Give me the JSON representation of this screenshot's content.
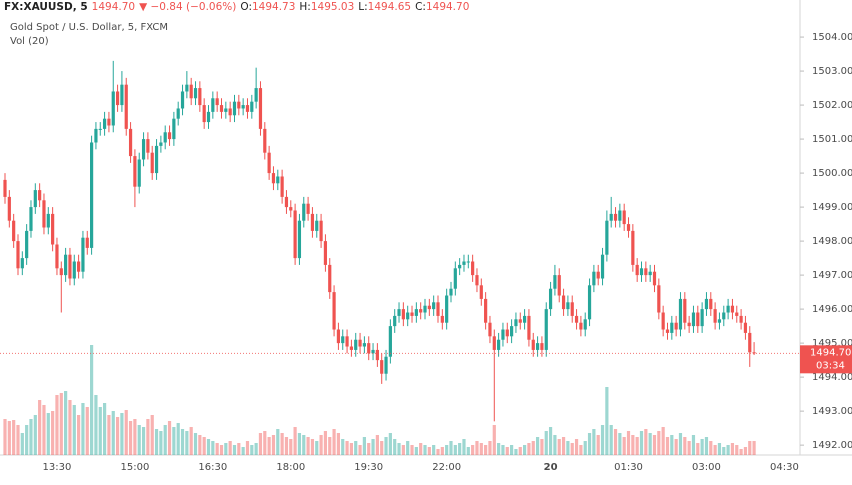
{
  "chart_data": {
    "type": "candlestick",
    "header": {
      "symbol": "FX:XAUUSD, 5",
      "price": "1494.70",
      "change": "▼ −0.84 (−0.06%)",
      "ohlc": [
        {
          "label": "O:",
          "value": "1494.73"
        },
        {
          "label": "H:",
          "value": "1495.03"
        },
        {
          "label": "L:",
          "value": "1494.65"
        },
        {
          "label": "C:",
          "value": "1494.70"
        }
      ]
    },
    "title": "Gold Spot / U.S. Dollar, 5, FXCM",
    "volume_title": "Vol (20)",
    "up_color": "#26a69a",
    "down_color": "#ef5350",
    "ylim": [
      1491.71,
      1505.09
    ],
    "yticks": [
      {
        "value": 1492,
        "label": "1492.00"
      },
      {
        "value": 1493,
        "label": "1493.00"
      },
      {
        "value": 1494,
        "label": "1494.00"
      },
      {
        "value": 1495,
        "label": "1495.00"
      },
      {
        "value": 1496,
        "label": "1496.00"
      },
      {
        "value": 1497,
        "label": "1497.00"
      },
      {
        "value": 1498,
        "label": "1498.00"
      },
      {
        "value": 1499,
        "label": "1499.00"
      },
      {
        "value": 1500,
        "label": "1500.00"
      },
      {
        "value": 1501,
        "label": "1501.00"
      },
      {
        "value": 1502,
        "label": "1502.00"
      },
      {
        "value": 1503,
        "label": "1503.00"
      },
      {
        "value": 1504,
        "label": "1504.00"
      }
    ],
    "grid": false,
    "last_price_label": "1494.70",
    "countdown": "03:34",
    "categories": [
      null,
      null,
      null,
      null,
      null,
      null,
      null,
      null,
      null,
      null,
      null,
      null,
      "13:30",
      null,
      null,
      null,
      null,
      null,
      null,
      null,
      null,
      null,
      null,
      null,
      null,
      null,
      null,
      null,
      null,
      null,
      "15:00",
      null,
      null,
      null,
      null,
      null,
      null,
      null,
      null,
      null,
      null,
      null,
      null,
      null,
      null,
      null,
      null,
      null,
      "16:30",
      null,
      null,
      null,
      null,
      null,
      null,
      null,
      null,
      null,
      null,
      null,
      null,
      null,
      null,
      null,
      null,
      null,
      "18:00",
      null,
      null,
      null,
      null,
      null,
      null,
      null,
      null,
      null,
      null,
      null,
      null,
      null,
      null,
      null,
      null,
      null,
      "19:30",
      null,
      null,
      null,
      null,
      null,
      null,
      null,
      null,
      null,
      null,
      null,
      null,
      null,
      null,
      null,
      null,
      null,
      "22:00",
      null,
      null,
      null,
      null,
      null,
      null,
      null,
      null,
      null,
      null,
      null,
      null,
      null,
      null,
      null,
      null,
      null,
      null,
      null,
      null,
      null,
      null,
      null,
      "20",
      null,
      null,
      null,
      null,
      null,
      null,
      null,
      null,
      null,
      null,
      null,
      null,
      null,
      null,
      null,
      null,
      null,
      "01:30",
      null,
      null,
      null,
      null,
      null,
      null,
      null,
      null,
      null,
      null,
      null,
      null,
      null,
      null,
      null,
      null,
      null,
      "03:00",
      null,
      null,
      null,
      null,
      null,
      null,
      null,
      null,
      null,
      null,
      null,
      null,
      null,
      null,
      null,
      null,
      null,
      "04:30"
    ],
    "open": [
      1499.8,
      1499.3,
      1498.6,
      1498.0,
      1497.2,
      1497.5,
      1498.3,
      1499.0,
      1499.5,
      1499.2,
      1498.4,
      1498.8,
      1497.9,
      1497.2,
      1497.0,
      1497.6,
      1496.9,
      1497.4,
      1497.1,
      1498.1,
      1497.8,
      1500.9,
      1501.3,
      1501.3,
      1501.6,
      1501.4,
      1502.4,
      1502.0,
      1502.6,
      1501.3,
      1500.5,
      1499.6,
      1500.4,
      1501.0,
      1500.6,
      1500.0,
      1500.8,
      1500.9,
      1501.2,
      1501.0,
      1501.6,
      1501.9,
      1502.4,
      1502.6,
      1502.2,
      1502.5,
      1502.0,
      1501.5,
      1501.8,
      1502.2,
      1502.0,
      1501.8,
      1501.9,
      1501.7,
      1502.1,
      1501.9,
      1502.0,
      1501.8,
      1502.1,
      1502.5,
      1501.3,
      1500.6,
      1500.0,
      1499.7,
      1499.9,
      1499.3,
      1499.0,
      1498.9,
      1497.5,
      1498.6,
      1499.1,
      1498.8,
      1498.3,
      1498.6,
      1498.0,
      1497.3,
      1496.5,
      1495.4,
      1495.0,
      1495.2,
      1494.9,
      1494.8,
      1495.1,
      1494.9,
      1495.0,
      1494.7,
      1494.8,
      1494.5,
      1494.1,
      1494.6,
      1495.5,
      1495.8,
      1496.0,
      1495.7,
      1495.9,
      1495.8,
      1496.0,
      1495.9,
      1496.1,
      1496.0,
      1496.2,
      1495.8,
      1495.6,
      1496.4,
      1496.6,
      1497.2,
      1497.3,
      1497.4,
      1497.4,
      1497.0,
      1496.7,
      1496.3,
      1495.6,
      1495.2,
      1494.8,
      1495.1,
      1495.4,
      1495.2,
      1495.5,
      1495.7,
      1495.6,
      1495.8,
      1495.1,
      1494.8,
      1495.0,
      1494.8,
      1496.0,
      1496.6,
      1497.0,
      1496.4,
      1496.0,
      1496.2,
      1495.8,
      1495.6,
      1495.4,
      1495.7,
      1496.7,
      1497.1,
      1496.9,
      1497.6,
      1498.6,
      1498.8,
      1498.6,
      1498.9,
      1498.5,
      1498.3,
      1497.3,
      1497.0,
      1497.2,
      1497.0,
      1497.1,
      1496.7,
      1495.9,
      1495.4,
      1495.3,
      1495.6,
      1495.4,
      1496.3,
      1495.6,
      1495.5,
      1495.9,
      1495.5,
      1496.0,
      1496.3,
      1496.0,
      1495.6,
      1495.7,
      1495.9,
      1496.1,
      1495.9,
      1495.8,
      1495.6,
      1495.3,
      1494.73,
      null,
      null,
      null,
      null,
      null,
      null,
      null
    ],
    "high": [
      1500.0,
      1499.5,
      1498.8,
      1498.2,
      1497.7,
      1498.5,
      1499.2,
      1499.7,
      1499.7,
      1499.4,
      1499.0,
      1499.0,
      1498.1,
      1497.4,
      1497.8,
      1497.8,
      1497.6,
      1497.6,
      1498.3,
      1498.3,
      1501.1,
      1501.5,
      1501.5,
      1501.8,
      1501.8,
      1503.3,
      1502.6,
      1503.0,
      1502.8,
      1501.5,
      1500.7,
      1500.6,
      1501.2,
      1501.2,
      1500.8,
      1501.0,
      1501.1,
      1501.4,
      1501.4,
      1501.8,
      1502.1,
      1502.6,
      1503.0,
      1502.8,
      1502.7,
      1502.7,
      1502.2,
      1502.0,
      1502.4,
      1502.4,
      1502.2,
      1502.1,
      1502.1,
      1502.3,
      1502.3,
      1502.2,
      1502.2,
      1502.3,
      1503.1,
      1502.7,
      1501.5,
      1500.8,
      1500.2,
      1500.1,
      1500.1,
      1499.5,
      1499.2,
      1499.1,
      1498.8,
      1499.3,
      1499.3,
      1499.0,
      1498.8,
      1498.8,
      1498.2,
      1497.5,
      1496.7,
      1495.6,
      1495.4,
      1495.4,
      1495.1,
      1495.3,
      1495.3,
      1495.2,
      1495.2,
      1495.0,
      1495.0,
      1494.7,
      1494.8,
      1495.7,
      1496.0,
      1496.2,
      1496.2,
      1496.1,
      1496.1,
      1496.2,
      1496.2,
      1496.3,
      1496.3,
      1496.4,
      1496.4,
      1496.0,
      1496.6,
      1496.8,
      1497.4,
      1497.5,
      1497.6,
      1497.6,
      1497.6,
      1497.2,
      1496.9,
      1496.5,
      1495.8,
      1495.4,
      1495.3,
      1495.6,
      1495.6,
      1495.7,
      1495.9,
      1495.9,
      1496.0,
      1496.0,
      1495.3,
      1495.2,
      1495.2,
      1496.2,
      1496.8,
      1497.3,
      1497.2,
      1496.6,
      1496.4,
      1496.4,
      1496.0,
      1495.8,
      1495.9,
      1496.9,
      1497.3,
      1497.3,
      1497.8,
      1498.9,
      1499.3,
      1499.0,
      1499.1,
      1499.1,
      1498.7,
      1498.5,
      1497.5,
      1497.4,
      1497.4,
      1497.3,
      1497.3,
      1496.9,
      1496.1,
      1495.6,
      1495.8,
      1495.8,
      1496.5,
      1496.5,
      1495.8,
      1496.1,
      1496.1,
      1496.2,
      1496.5,
      1496.5,
      1496.2,
      1495.9,
      1496.1,
      1496.3,
      1496.3,
      1496.1,
      1496.0,
      1495.8,
      1495.5,
      1495.03,
      null,
      null,
      null,
      null,
      null,
      null,
      null
    ],
    "low": [
      1499.1,
      1498.4,
      1497.8,
      1497.0,
      1497.0,
      1497.3,
      1498.1,
      1498.8,
      1499.0,
      1498.2,
      1498.2,
      1497.7,
      1497.0,
      1495.9,
      1496.8,
      1496.7,
      1496.7,
      1496.9,
      1496.9,
      1497.6,
      1497.6,
      1500.7,
      1501.1,
      1501.1,
      1501.2,
      1501.2,
      1501.8,
      1501.8,
      1501.1,
      1500.3,
      1499.0,
      1499.4,
      1500.2,
      1500.4,
      1499.8,
      1499.8,
      1500.6,
      1500.7,
      1500.8,
      1500.8,
      1501.4,
      1501.7,
      1502.2,
      1502.0,
      1502.0,
      1501.8,
      1501.3,
      1501.3,
      1501.6,
      1501.8,
      1501.6,
      1501.6,
      1501.5,
      1501.5,
      1501.7,
      1501.7,
      1501.6,
      1501.6,
      1501.9,
      1501.1,
      1500.4,
      1499.8,
      1499.5,
      1499.5,
      1499.1,
      1498.8,
      1498.7,
      1497.3,
      1497.3,
      1498.4,
      1498.6,
      1498.1,
      1498.1,
      1497.8,
      1497.1,
      1496.3,
      1495.2,
      1494.8,
      1494.8,
      1494.7,
      1494.6,
      1494.6,
      1494.7,
      1494.7,
      1494.5,
      1494.5,
      1494.3,
      1493.8,
      1493.9,
      1494.4,
      1495.3,
      1495.6,
      1495.5,
      1495.5,
      1495.6,
      1495.6,
      1495.7,
      1495.7,
      1495.8,
      1495.8,
      1495.6,
      1495.4,
      1495.4,
      1496.2,
      1496.4,
      1497.0,
      1497.1,
      1497.2,
      1496.8,
      1496.5,
      1496.1,
      1495.4,
      1495.0,
      1492.7,
      1494.6,
      1494.9,
      1495.0,
      1495.0,
      1495.3,
      1495.4,
      1495.4,
      1494.9,
      1494.6,
      1494.6,
      1494.6,
      1494.6,
      1495.8,
      1496.4,
      1496.2,
      1495.8,
      1495.8,
      1495.6,
      1495.4,
      1495.2,
      1495.2,
      1495.5,
      1496.5,
      1496.7,
      1496.7,
      1497.4,
      1498.4,
      1498.4,
      1498.4,
      1498.3,
      1498.1,
      1497.1,
      1496.8,
      1496.8,
      1496.8,
      1496.8,
      1496.5,
      1495.7,
      1495.2,
      1495.1,
      1495.1,
      1495.2,
      1495.2,
      1495.4,
      1495.3,
      1495.3,
      1495.3,
      1495.3,
      1495.8,
      1495.8,
      1495.4,
      1495.4,
      1495.5,
      1495.7,
      1495.7,
      1495.6,
      1495.4,
      1495.1,
      1494.3,
      1494.65,
      null,
      null,
      null,
      null,
      null,
      null,
      null
    ],
    "close": [
      1499.3,
      1498.6,
      1498.0,
      1497.2,
      1497.5,
      1498.3,
      1499.0,
      1499.5,
      1499.2,
      1498.4,
      1498.8,
      1497.9,
      1497.2,
      1497.0,
      1497.6,
      1496.9,
      1497.4,
      1497.1,
      1498.1,
      1497.8,
      1500.9,
      1501.3,
      1501.3,
      1501.6,
      1501.4,
      1502.4,
      1502.0,
      1502.6,
      1501.3,
      1500.5,
      1499.6,
      1500.4,
      1501.0,
      1500.6,
      1500.0,
      1500.8,
      1500.9,
      1501.2,
      1501.0,
      1501.6,
      1501.9,
      1502.4,
      1502.6,
      1502.2,
      1502.5,
      1502.0,
      1501.5,
      1501.8,
      1502.2,
      1502.0,
      1501.8,
      1501.9,
      1501.7,
      1502.1,
      1501.9,
      1502.0,
      1501.8,
      1502.1,
      1502.5,
      1501.3,
      1500.6,
      1500.0,
      1499.7,
      1499.9,
      1499.3,
      1499.0,
      1498.9,
      1497.5,
      1498.6,
      1499.1,
      1498.8,
      1498.3,
      1498.6,
      1498.0,
      1497.3,
      1496.5,
      1495.4,
      1495.0,
      1495.2,
      1494.9,
      1494.8,
      1495.1,
      1494.9,
      1495.0,
      1494.7,
      1494.8,
      1494.5,
      1494.1,
      1494.6,
      1495.5,
      1495.8,
      1496.0,
      1495.7,
      1495.9,
      1495.8,
      1496.0,
      1495.9,
      1496.1,
      1496.0,
      1496.2,
      1495.8,
      1495.6,
      1496.4,
      1496.6,
      1497.2,
      1497.3,
      1497.4,
      1497.4,
      1497.0,
      1496.7,
      1496.3,
      1495.6,
      1495.2,
      1494.8,
      1495.1,
      1495.4,
      1495.2,
      1495.5,
      1495.7,
      1495.6,
      1495.8,
      1495.1,
      1494.8,
      1495.0,
      1494.8,
      1496.0,
      1496.6,
      1497.0,
      1496.4,
      1496.0,
      1496.2,
      1495.8,
      1495.6,
      1495.4,
      1495.7,
      1496.7,
      1497.1,
      1496.9,
      1497.6,
      1498.6,
      1498.8,
      1498.6,
      1498.9,
      1498.5,
      1498.3,
      1497.3,
      1497.0,
      1497.2,
      1497.0,
      1497.1,
      1496.7,
      1495.9,
      1495.4,
      1495.3,
      1495.6,
      1495.4,
      1496.3,
      1495.6,
      1495.5,
      1495.9,
      1495.5,
      1496.0,
      1496.3,
      1496.0,
      1495.6,
      1495.7,
      1495.9,
      1496.1,
      1495.9,
      1495.8,
      1495.6,
      1495.3,
      1494.73,
      1494.7,
      null,
      null,
      null,
      null,
      null,
      null,
      null
    ],
    "volume": [
      36,
      34,
      35,
      30,
      22,
      30,
      36,
      40,
      55,
      50,
      42,
      44,
      60,
      62,
      64,
      55,
      50,
      40,
      52,
      48,
      110,
      60,
      48,
      52,
      40,
      44,
      38,
      42,
      45,
      34,
      36,
      30,
      28,
      36,
      40,
      26,
      24,
      30,
      34,
      28,
      32,
      26,
      24,
      28,
      22,
      20,
      18,
      16,
      14,
      12,
      10,
      12,
      14,
      10,
      12,
      8,
      14,
      10,
      12,
      22,
      24,
      18,
      20,
      26,
      22,
      18,
      16,
      28,
      22,
      20,
      18,
      16,
      14,
      20,
      24,
      18,
      26,
      22,
      16,
      14,
      12,
      14,
      10,
      18,
      12,
      16,
      20,
      14,
      18,
      22,
      16,
      12,
      10,
      14,
      10,
      8,
      12,
      10,
      8,
      10,
      6,
      8,
      10,
      14,
      10,
      12,
      16,
      8,
      10,
      14,
      12,
      10,
      14,
      30,
      12,
      10,
      8,
      10,
      6,
      8,
      10,
      12,
      14,
      18,
      16,
      24,
      28,
      20,
      16,
      18,
      14,
      12,
      16,
      10,
      14,
      22,
      26,
      20,
      30,
      68,
      30,
      26,
      22,
      18,
      24,
      20,
      18,
      24,
      26,
      22,
      20,
      24,
      28,
      18,
      20,
      16,
      22,
      18,
      14,
      20,
      12,
      16,
      18,
      14,
      10,
      12,
      8,
      10,
      12,
      10,
      6,
      8,
      14,
      14,
      null,
      null,
      null,
      null,
      null,
      null,
      null
    ]
  }
}
